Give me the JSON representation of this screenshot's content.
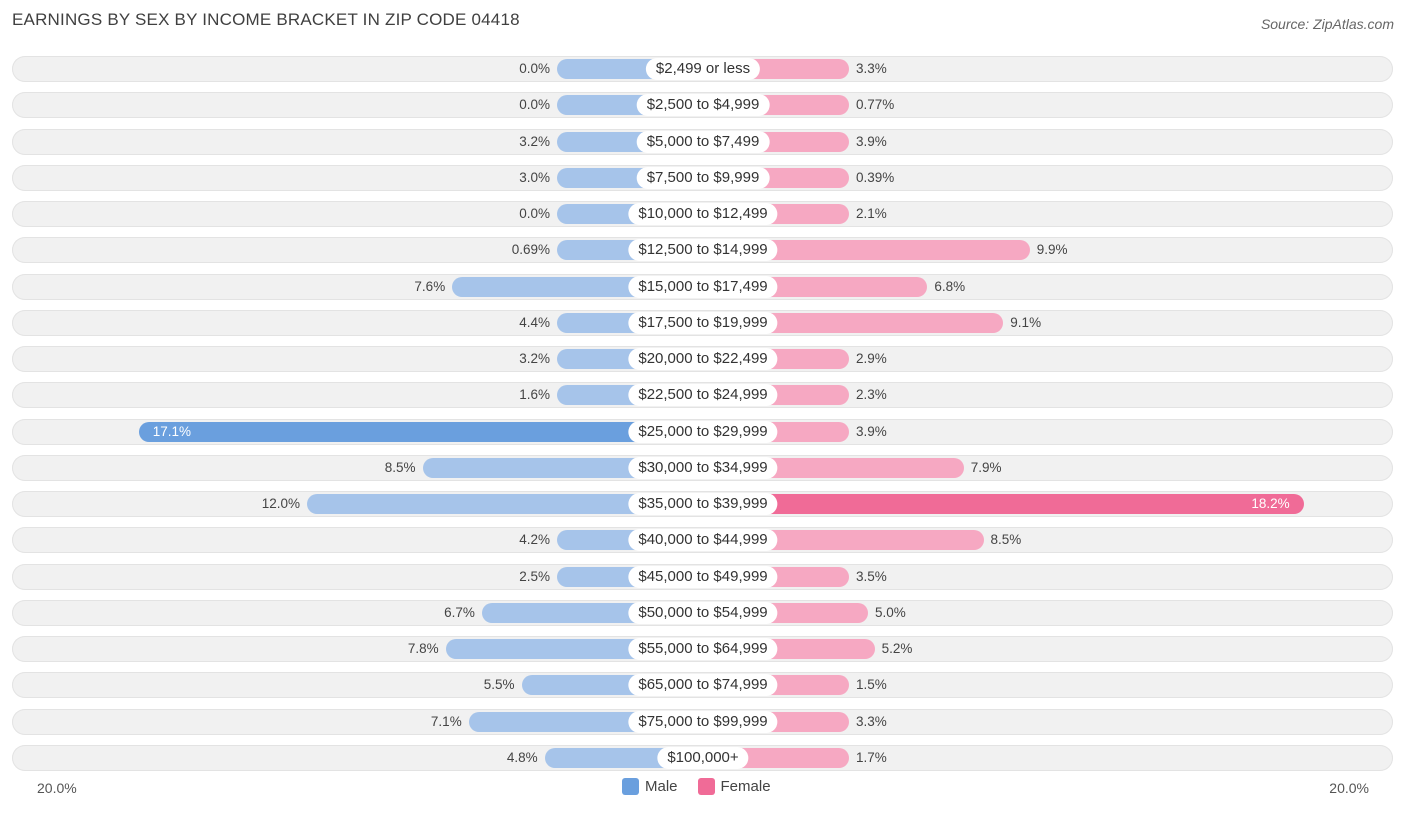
{
  "chart_data": {
    "type": "bar",
    "orientation": "horizontal-diverging",
    "title": "EARNINGS BY SEX BY INCOME BRACKET IN ZIP CODE 04418",
    "source": "Source: ZipAtlas.com",
    "axis_max": 20.0,
    "axis_left_label": "20.0%",
    "axis_right_label": "20.0%",
    "categories": [
      "$2,499 or less",
      "$2,500 to $4,999",
      "$5,000 to $7,499",
      "$7,500 to $9,999",
      "$10,000 to $12,499",
      "$12,500 to $14,999",
      "$15,000 to $17,499",
      "$17,500 to $19,999",
      "$20,000 to $22,499",
      "$22,500 to $24,999",
      "$25,000 to $29,999",
      "$30,000 to $34,999",
      "$35,000 to $39,999",
      "$40,000 to $44,999",
      "$45,000 to $49,999",
      "$50,000 to $54,999",
      "$55,000 to $64,999",
      "$65,000 to $74,999",
      "$75,000 to $99,999",
      "$100,000+"
    ],
    "series": [
      {
        "name": "Male",
        "color": "#a6c4ea",
        "strong_color": "#6a9fde",
        "values": [
          0.0,
          0.0,
          3.2,
          3.0,
          0.0,
          0.69,
          7.6,
          4.4,
          3.2,
          1.6,
          17.1,
          8.5,
          12.0,
          4.2,
          2.5,
          6.7,
          7.8,
          5.5,
          7.1,
          4.8
        ],
        "labels": [
          "0.0%",
          "0.0%",
          "3.2%",
          "3.0%",
          "0.0%",
          "0.69%",
          "7.6%",
          "4.4%",
          "3.2%",
          "1.6%",
          "17.1%",
          "8.5%",
          "12.0%",
          "4.2%",
          "2.5%",
          "6.7%",
          "7.8%",
          "5.5%",
          "7.1%",
          "4.8%"
        ]
      },
      {
        "name": "Female",
        "color": "#f6a8c2",
        "strong_color": "#f06b97",
        "values": [
          3.3,
          0.77,
          3.9,
          0.39,
          2.1,
          9.9,
          6.8,
          9.1,
          2.9,
          2.3,
          3.9,
          7.9,
          18.2,
          8.5,
          3.5,
          5.0,
          5.2,
          1.5,
          3.3,
          1.7
        ],
        "labels": [
          "3.3%",
          "0.77%",
          "3.9%",
          "0.39%",
          "2.1%",
          "9.9%",
          "6.8%",
          "9.1%",
          "2.9%",
          "2.3%",
          "3.9%",
          "7.9%",
          "18.2%",
          "8.5%",
          "3.5%",
          "5.0%",
          "5.2%",
          "1.5%",
          "3.3%",
          "1.7%"
        ]
      }
    ],
    "legend": [
      "Male",
      "Female"
    ]
  }
}
